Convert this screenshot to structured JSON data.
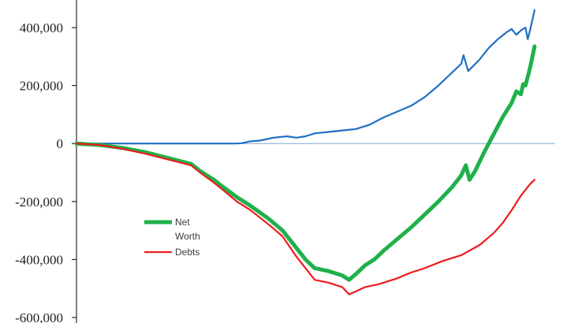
{
  "chart_data": {
    "type": "line",
    "title": "",
    "xlabel": "",
    "ylabel": "",
    "ylim": [
      -600000,
      400000
    ],
    "y_ticks": [
      400000,
      200000,
      0,
      -200000,
      -400000,
      -600000
    ],
    "y_tick_labels": [
      "400,000",
      "200,000",
      "0",
      "-200,000",
      "-400,000",
      "-600,000"
    ],
    "x_range": [
      0,
      100
    ],
    "grid": false,
    "legend_position": "bottom-left",
    "series": [
      {
        "name": "",
        "color": "#1f6fc5",
        "points": [
          [
            0,
            0
          ],
          [
            10,
            0
          ],
          [
            20,
            0
          ],
          [
            30,
            0
          ],
          [
            35,
            0
          ],
          [
            36,
            1000
          ],
          [
            38,
            8000
          ],
          [
            40,
            10000
          ],
          [
            43,
            20000
          ],
          [
            46,
            25000
          ],
          [
            48,
            20000
          ],
          [
            50,
            25000
          ],
          [
            52,
            35000
          ],
          [
            55,
            40000
          ],
          [
            58,
            45000
          ],
          [
            61,
            50000
          ],
          [
            64,
            65000
          ],
          [
            67,
            90000
          ],
          [
            70,
            110000
          ],
          [
            73,
            130000
          ],
          [
            76,
            160000
          ],
          [
            79,
            200000
          ],
          [
            82,
            245000
          ],
          [
            84,
            275000
          ],
          [
            84.5,
            305000
          ],
          [
            85.5,
            250000
          ],
          [
            88,
            290000
          ],
          [
            90,
            330000
          ],
          [
            92,
            360000
          ],
          [
            94,
            385000
          ],
          [
            95,
            395000
          ],
          [
            96,
            375000
          ],
          [
            97,
            390000
          ],
          [
            98,
            400000
          ],
          [
            98.5,
            360000
          ],
          [
            99,
            390000
          ],
          [
            100,
            460000
          ]
        ]
      },
      {
        "name": "Net Worth",
        "color": "#1fb14a",
        "points": [
          [
            0,
            0
          ],
          [
            5,
            -5000
          ],
          [
            10,
            -15000
          ],
          [
            15,
            -30000
          ],
          [
            20,
            -50000
          ],
          [
            25,
            -70000
          ],
          [
            27,
            -95000
          ],
          [
            30,
            -125000
          ],
          [
            32,
            -150000
          ],
          [
            35,
            -185000
          ],
          [
            38,
            -215000
          ],
          [
            42,
            -260000
          ],
          [
            45,
            -300000
          ],
          [
            48,
            -360000
          ],
          [
            50,
            -400000
          ],
          [
            52,
            -430000
          ],
          [
            55,
            -440000
          ],
          [
            58,
            -455000
          ],
          [
            59.5,
            -470000
          ],
          [
            61,
            -450000
          ],
          [
            63,
            -420000
          ],
          [
            65,
            -400000
          ],
          [
            67,
            -370000
          ],
          [
            70,
            -330000
          ],
          [
            73,
            -290000
          ],
          [
            76,
            -245000
          ],
          [
            79,
            -200000
          ],
          [
            82,
            -150000
          ],
          [
            84,
            -110000
          ],
          [
            85,
            -75000
          ],
          [
            85.8,
            -125000
          ],
          [
            87,
            -95000
          ],
          [
            89,
            -30000
          ],
          [
            91,
            30000
          ],
          [
            93,
            90000
          ],
          [
            95,
            140000
          ],
          [
            96,
            180000
          ],
          [
            97,
            170000
          ],
          [
            97.5,
            205000
          ],
          [
            98,
            200000
          ],
          [
            99,
            260000
          ],
          [
            100,
            335000
          ]
        ]
      },
      {
        "name": "Debts",
        "color": "#ee1c1c",
        "points": [
          [
            0,
            0
          ],
          [
            5,
            -5000
          ],
          [
            10,
            -18000
          ],
          [
            15,
            -35000
          ],
          [
            20,
            -55000
          ],
          [
            25,
            -75000
          ],
          [
            27,
            -100000
          ],
          [
            30,
            -135000
          ],
          [
            32,
            -160000
          ],
          [
            35,
            -200000
          ],
          [
            38,
            -230000
          ],
          [
            42,
            -280000
          ],
          [
            45,
            -320000
          ],
          [
            48,
            -390000
          ],
          [
            50,
            -430000
          ],
          [
            52,
            -470000
          ],
          [
            55,
            -480000
          ],
          [
            58,
            -495000
          ],
          [
            59.5,
            -520000
          ],
          [
            61,
            -510000
          ],
          [
            63,
            -495000
          ],
          [
            66,
            -485000
          ],
          [
            70,
            -465000
          ],
          [
            73,
            -445000
          ],
          [
            76,
            -430000
          ],
          [
            80,
            -405000
          ],
          [
            84,
            -385000
          ],
          [
            88,
            -350000
          ],
          [
            91,
            -310000
          ],
          [
            93,
            -275000
          ],
          [
            95,
            -230000
          ],
          [
            97,
            -180000
          ],
          [
            99,
            -140000
          ],
          [
            100,
            -125000
          ]
        ]
      }
    ]
  }
}
